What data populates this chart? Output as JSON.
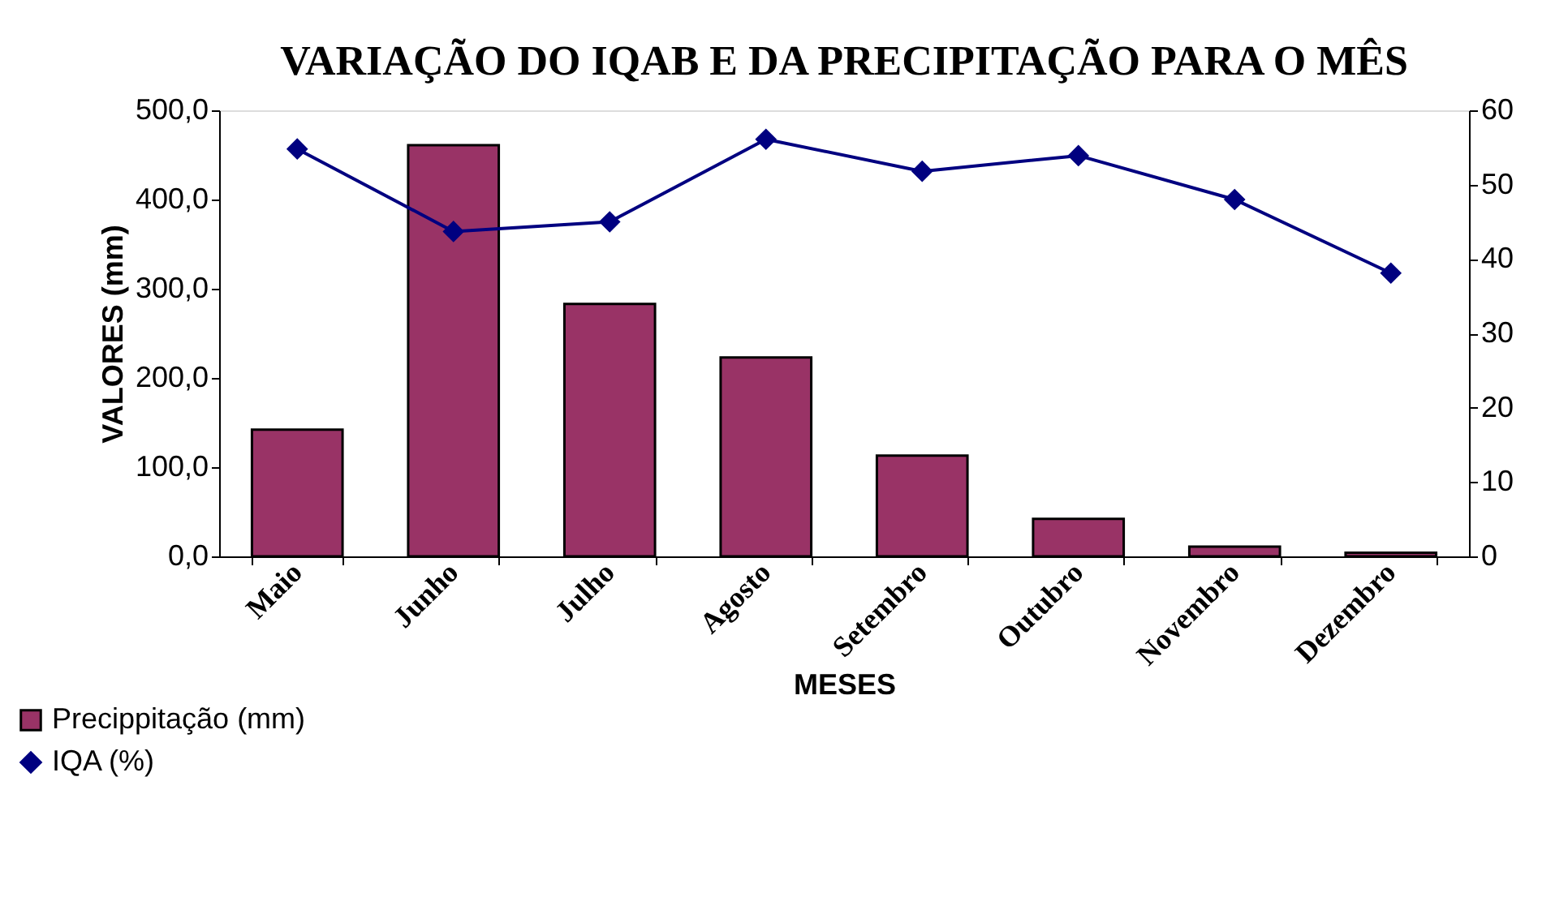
{
  "chart_data": {
    "type": "bar",
    "title": "VARIAÇÃO DO IQAB E DA PRECIPITAÇÃO PARA O MÊS",
    "xlabel": "MESES",
    "ylabel": "VALORES (mm)",
    "categories": [
      "Maio",
      "Junho",
      "Julho",
      "Agosto",
      "Setembro",
      "Outubro",
      "Novembro",
      "Dezembro"
    ],
    "series": [
      {
        "name": "Precippitação (mm)",
        "color": "#993366",
        "values": [
          142,
          461,
          283,
          223,
          113,
          42,
          11,
          4
        ]
      },
      {
        "name": "IQA (%)",
        "type": "line",
        "axis": "y2",
        "color": "#000080",
        "marker": "diamond",
        "values": [
          54.8,
          43.7,
          45.0,
          56.1,
          51.8,
          53.9,
          48.0,
          38.1
        ]
      }
    ],
    "ylim": [
      0,
      500
    ],
    "yticks": [
      {
        "value": 0,
        "label": "0,0"
      },
      {
        "value": 100,
        "label": "100,0"
      },
      {
        "value": 200,
        "label": "200,0"
      },
      {
        "value": 300,
        "label": "300,0"
      },
      {
        "value": 400,
        "label": "400,0"
      },
      {
        "value": 500,
        "label": "500,0"
      }
    ],
    "y2lim": [
      0,
      60
    ],
    "y2ticks": [
      0,
      10,
      20,
      30,
      40,
      50,
      60
    ],
    "grid": false,
    "legend": "bottom left"
  }
}
